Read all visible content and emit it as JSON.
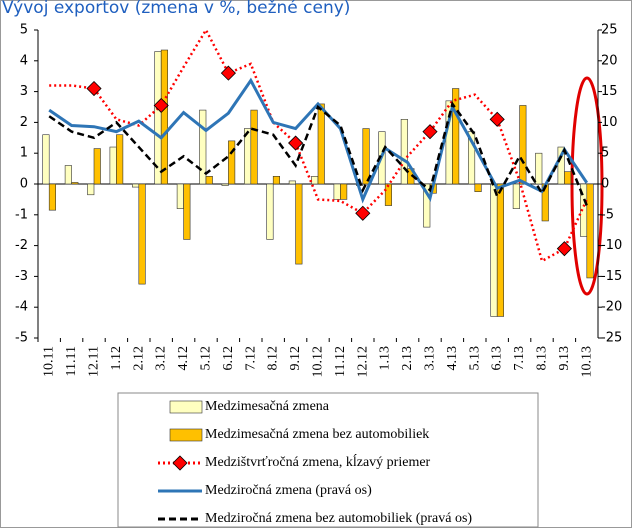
{
  "chart_data": {
    "type": "combo",
    "title": "Vývoj exportov (zmena v %, bežné ceny)",
    "categories": [
      "10.11",
      "11.11",
      "12.11",
      "1.12",
      "2.12",
      "3.12",
      "4.12",
      "5.12",
      "6.12",
      "7.12",
      "8.12",
      "9.12",
      "10.12",
      "11.12",
      "12.12",
      "1.13",
      "2.13",
      "3.13",
      "4.13",
      "5.13",
      "6.13",
      "7.13",
      "8.13",
      "9.13",
      "10.13"
    ],
    "ylim": [
      -5,
      5
    ],
    "yticks": [
      5,
      4,
      3,
      2,
      1,
      0,
      -1,
      -2,
      -3,
      -4,
      -5
    ],
    "y2lim": [
      -25,
      25
    ],
    "y2ticks": [
      25,
      20,
      15,
      10,
      5,
      0,
      -5,
      -10,
      -15,
      -20,
      -25
    ],
    "series": [
      {
        "name": "Medzimesačná zmena",
        "type": "bar",
        "color": "#ffffc0",
        "values": [
          1.6,
          0.6,
          -0.35,
          1.2,
          -0.1,
          4.3,
          -0.8,
          2.4,
          -0.05,
          1.8,
          -1.8,
          0.1,
          0.25,
          -0.5,
          -0.05,
          1.7,
          2.1,
          -1.4,
          2.7,
          1.7,
          -4.3,
          -0.8,
          1.0,
          1.2,
          -1.7
        ]
      },
      {
        "name": "Medzimesačná zmena bez automobiliek",
        "type": "bar",
        "color": "#ffc000",
        "values": [
          -0.85,
          0.05,
          1.15,
          1.6,
          -3.25,
          4.35,
          -1.8,
          0.25,
          1.4,
          2.4,
          0.25,
          -2.6,
          2.6,
          -0.5,
          1.8,
          -0.7,
          0.5,
          -0.3,
          3.1,
          -0.25,
          -4.3,
          2.55,
          -1.2,
          0.4,
          -3.05
        ]
      },
      {
        "name": "Medzištvrťročná zmena, kĺzavý priemer",
        "type": "line",
        "color": "#ff0000",
        "dash": "dotted",
        "marker": "diamond",
        "marker_every": 3,
        "marker_start": 2,
        "values": [
          3.2,
          3.2,
          3.1,
          2.1,
          1.9,
          2.55,
          3.8,
          5.0,
          3.6,
          3.9,
          2.0,
          1.33,
          -0.5,
          -0.55,
          -0.95,
          -0.2,
          0.9,
          1.7,
          2.7,
          2.9,
          2.1,
          0.1,
          -2.5,
          -2.1,
          -0.5
        ]
      },
      {
        "name": "Medziročná zmena (pravá os)",
        "type": "line",
        "axis": "y2",
        "color": "#2e75b6",
        "dash": "solid",
        "values": [
          12,
          9.5,
          9.3,
          8.5,
          10.2,
          7.5,
          11.6,
          8.7,
          11.5,
          16.8,
          10,
          9,
          13,
          9,
          -2.5,
          5.8,
          3.5,
          -2.3,
          12.5,
          6,
          -0.7,
          0.6,
          -1.2,
          5.6,
          0.2
        ]
      },
      {
        "name": "Medziročná zmena bez automobiliek (pravá os)",
        "type": "line",
        "axis": "y2",
        "color": "#000000",
        "dash": "dashed",
        "values": [
          11,
          8.5,
          7.5,
          10,
          6,
          2,
          4.5,
          1.7,
          4.5,
          9,
          8,
          3,
          12.5,
          9.5,
          -1,
          6,
          2,
          -1,
          13,
          8,
          -2,
          4.5,
          -1.5,
          5.5,
          -3.5
        ]
      }
    ]
  }
}
